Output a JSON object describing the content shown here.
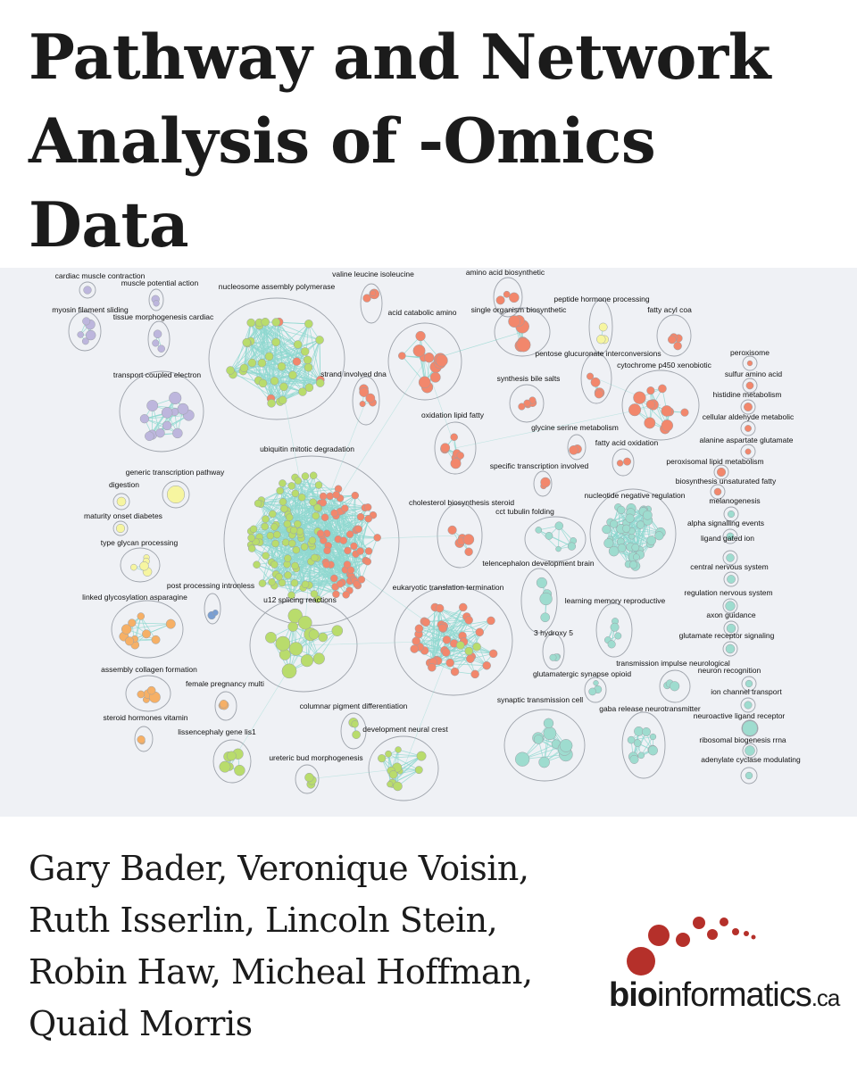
{
  "title": {
    "lines": [
      "Pathway and Network",
      "Analysis of -Omics",
      "Data"
    ]
  },
  "authors": [
    "Gary Bader, Veronique Voisin,",
    "Ruth Isserlin, Lincoln Stein,",
    "Robin Haw, Micheal Hoffman,",
    "Quaid Morris"
  ],
  "logo": {
    "bold": "bio",
    "regular": "informatics",
    "suffix": ".ca",
    "color": "#b5302a"
  },
  "network": {
    "edge_color": "#8fd8cf",
    "colors": {
      "purple": "#bdb6dd",
      "green": "#b9dc6c",
      "salmon": "#f2876c",
      "teal": "#9edccf",
      "yellow": "#f6f5a0",
      "orange": "#f6b066",
      "blue": "#7a9fd2"
    },
    "labels": [
      "cardiac muscle contraction",
      "muscle potential action",
      "myosin filament sliding",
      "tissue morphogenesis cardiac",
      "nucleosome assembly polymerase",
      "valine leucine isoleucine",
      "amino acid biosynthetic",
      "acid catabolic amino",
      "single organism biosynthetic",
      "peptide hormone processing",
      "fatty acyl coa",
      "pentose glucuronate interconversions",
      "cytochrome p450 xenobiotic",
      "peroxisome",
      "sulfur amino acid",
      "transport coupled electron",
      "strand involved dna",
      "synthesis bile salts",
      "histidine metabolism",
      "cellular aldehyde metabolic",
      "oxidation lipid fatty",
      "glycine serine metabolism",
      "alanine aspartate glutamate",
      "fatty acid oxidation",
      "ubiquitin mitotic degradation",
      "peroxisomal lipid metabolism",
      "specific transcription involved",
      "generic transcription pathway",
      "biosynthesis unsaturated fatty",
      "digestion",
      "cholesterol biosynthesis steroid",
      "nucleotide negative regulation",
      "melanogenesis",
      "cct tubulin folding",
      "maturity onset diabetes",
      "alpha signalling events",
      "type glycan processing",
      "ligand gated ion",
      "telencephalon development brain",
      "central nervous system",
      "post processing intronless",
      "eukaryotic translation termination",
      "regulation nervous system",
      "linked glycosylation asparagine",
      "u12 splicing reactions",
      "learning memory reproductive",
      "axon guidance",
      "3 hydroxy 5",
      "glutamate receptor signaling",
      "transmission impulse neurological",
      "assembly collagen formation",
      "glutamatergic synapse opioid",
      "neuron recognition",
      "female pregnancy multi",
      "ion channel transport",
      "synaptic transmission cell",
      "gaba release neurotransmitter",
      "columnar pigment differentiation",
      "neuroactive ligand receptor",
      "steroid hormones vitamin",
      "development neural crest",
      "ribosomal biogenesis rrna",
      "lissencephaly gene lis1",
      "ureteric bud morphogenesis",
      "adenylate cyclase modulating"
    ]
  }
}
